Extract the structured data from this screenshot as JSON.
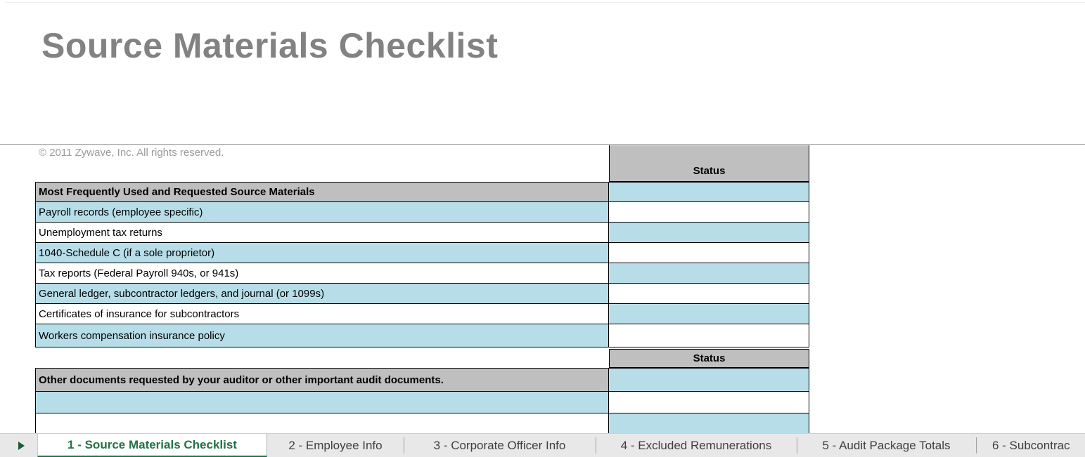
{
  "title": "Source Materials Checklist",
  "copyright": "© 2011 Zywave, Inc. All rights reserved.",
  "table": {
    "status_header_top": "Status",
    "status_header_bottom": "Status",
    "section1": {
      "header": "Most Frequently Used and Requested Source Materials",
      "items": [
        "Payroll records (employee specific)",
        "Unemployment tax returns",
        "1040-Schedule C (if a sole proprietor)",
        "Tax reports (Federal Payroll 940s, or 941s)",
        "General ledger, subcontractor ledgers, and journal (or 1099s)",
        "Certificates of insurance for subcontractors",
        "Workers compensation insurance policy"
      ],
      "status_values": [
        "",
        "",
        "",
        "",
        "",
        "",
        "",
        ""
      ]
    },
    "section2": {
      "header": "Other documents requested by your auditor or other important audit documents.",
      "empty_row_count": 2,
      "status_values": [
        "",
        "",
        ""
      ]
    }
  },
  "tabbar": {
    "nav_icon": "right-triangle-icon",
    "active_tab": "1 - Source Materials Checklist",
    "inactive_tabs": [
      "2 - Employee Info",
      "3 - Corporate Officer Info",
      "4 - Excluded Remunerations",
      "5 - Audit Package Totals",
      "6 - Subcontrac"
    ]
  },
  "colors": {
    "band_blue": "#B7DEE8",
    "header_gray": "#BFBFBF",
    "active_tab_green": "#217346",
    "title_gray": "#828282",
    "tabbar_gray": "#E8E8E8"
  }
}
